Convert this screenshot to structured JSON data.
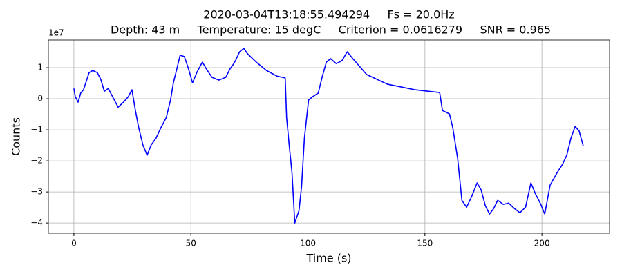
{
  "chart_data": {
    "type": "line",
    "title": "2020-03-04T13:18:55.494294     Fs = 20.0Hz",
    "subtitle": " Depth: 43 m     Temperature: 15 degC     Criterion = 0.0616279     SNR = 0.965",
    "x_label": "Time (s)",
    "y_label": "Counts",
    "y_offset_label": "1e7",
    "x": [
      0,
      0.6,
      1.8,
      2.9,
      4.1,
      5.3,
      6.5,
      8,
      10,
      11.5,
      13,
      14.7,
      16.5,
      18.9,
      21.2,
      23.3,
      24.8,
      26.3,
      27.7,
      29.5,
      31.3,
      33,
      35.1,
      37.2,
      39.5,
      41.3,
      42.5,
      44,
      45.4,
      47.2,
      49,
      50.7,
      52.5,
      54.9,
      56.6,
      59,
      62,
      64.9,
      66.7,
      67.8,
      69,
      70.8,
      72.6,
      74.3,
      77.9,
      82.3,
      86.7,
      90.3,
      90.9,
      92,
      93.2,
      94.4,
      96.2,
      97.3,
      98.5,
      100.3,
      102.1,
      104.4,
      106.2,
      107.9,
      109.7,
      112.1,
      114.5,
      116.8,
      119.2,
      125.1,
      133.9,
      145.7,
      156.3,
      157.5,
      160.5,
      161.9,
      164,
      165.8,
      167.8,
      169.9,
      172.3,
      174,
      175.8,
      177.6,
      179.4,
      181.1,
      183.5,
      185.8,
      188.2,
      190.6,
      193,
      195.3,
      197.1,
      199.4,
      201.2,
      203.5,
      206.5,
      208.8,
      210.6,
      212.4,
      214.2,
      215.9,
      217.7
    ],
    "series": [
      {
        "color": "#0000ff",
        "values": [
          0.33,
          0.07,
          -0.11,
          0.18,
          0.29,
          0.56,
          0.84,
          0.91,
          0.84,
          0.62,
          0.24,
          0.33,
          0.07,
          -0.27,
          -0.11,
          0.07,
          0.29,
          -0.38,
          -0.93,
          -1.49,
          -1.82,
          -1.49,
          -1.27,
          -0.93,
          -0.6,
          -0.04,
          0.51,
          0.96,
          1.4,
          1.36,
          0.96,
          0.51,
          0.84,
          1.18,
          0.96,
          0.69,
          0.6,
          0.69,
          0.96,
          1.07,
          1.22,
          1.51,
          1.62,
          1.44,
          1.18,
          0.91,
          0.73,
          0.67,
          -0.6,
          -1.49,
          -2.38,
          -4.0,
          -3.6,
          -2.82,
          -1.27,
          -0.04,
          0.07,
          0.18,
          0.73,
          1.18,
          1.29,
          1.13,
          1.22,
          1.51,
          1.29,
          0.78,
          0.47,
          0.29,
          0.2,
          -0.38,
          -0.49,
          -0.93,
          -1.93,
          -3.27,
          -3.49,
          -3.16,
          -2.71,
          -2.93,
          -3.44,
          -3.71,
          -3.53,
          -3.27,
          -3.4,
          -3.36,
          -3.53,
          -3.67,
          -3.49,
          -2.71,
          -3.04,
          -3.38,
          -3.71,
          -2.78,
          -2.38,
          -2.11,
          -1.82,
          -1.27,
          -0.89,
          -1.04,
          -1.53
        ]
      }
    ],
    "xlim": [
      -10.9,
      228.9
    ],
    "ylim": [
      -4.33,
      1.89
    ],
    "xticks": [
      0,
      50,
      100,
      150,
      200
    ],
    "yticks": [
      {
        "value": -4,
        "label": "−4"
      },
      {
        "value": -3,
        "label": "−3"
      },
      {
        "value": -2,
        "label": "−2"
      },
      {
        "value": -1,
        "label": "−1"
      },
      0,
      1
    ],
    "grid": true
  }
}
